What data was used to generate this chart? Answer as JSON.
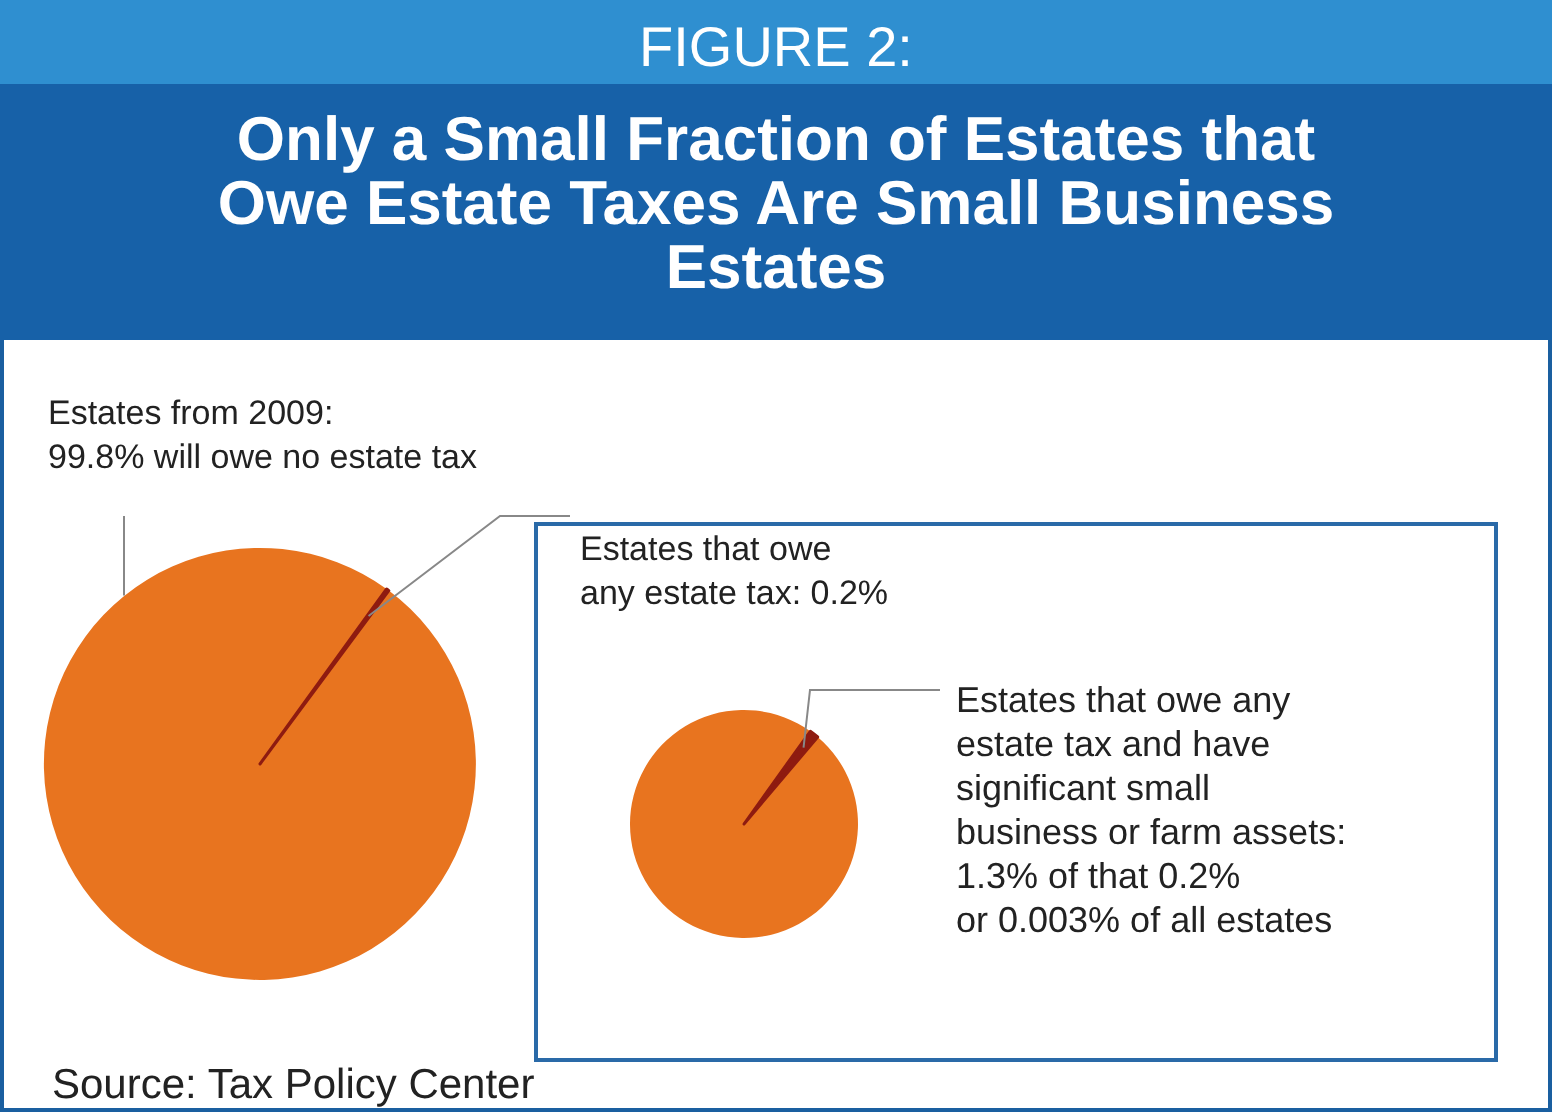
{
  "chart_data": [
    {
      "type": "pie",
      "title": "FIGURE 2:",
      "subtitle": "Only a Small Fraction of Estates that Owe Estate Taxes Are Small Business Estates",
      "categories": [
        "Estates from 2009:\n99.8% will owe no estate tax",
        "Estates that owe\nany estate tax: 0.2%"
      ],
      "values": [
        99.8,
        0.2
      ],
      "colors": [
        "#e8741f",
        "#8e1b10"
      ],
      "annotations": [
        "Source: Tax Policy Center"
      ]
    },
    {
      "type": "pie",
      "categories": [
        null,
        "Estates that owe any\nestate tax and have\nsignificant small\nbusiness or farm assets:\n1.3% of that 0.2%\nor 0.003% of all estates"
      ],
      "values": [
        98.7,
        1.3
      ],
      "colors": [
        "#e8741f",
        "#8e1b10"
      ]
    }
  ]
}
